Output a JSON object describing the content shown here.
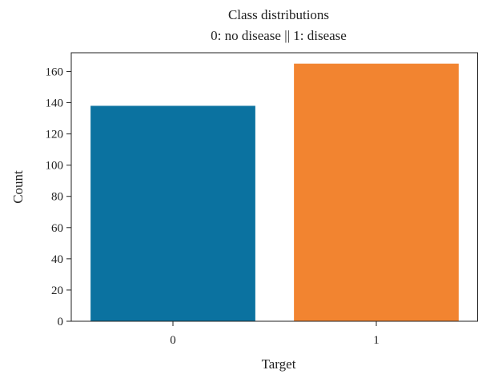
{
  "chart_data": {
    "type": "bar",
    "title": "Class distributions",
    "subtitle": "0: no disease || 1: disease",
    "xlabel": "Target",
    "ylabel": "Count",
    "categories": [
      "0",
      "1"
    ],
    "values": [
      138,
      165
    ],
    "colors": [
      "#0b72a0",
      "#f28430"
    ],
    "ylim": [
      0,
      172
    ],
    "yticks": [
      0,
      20,
      40,
      60,
      80,
      100,
      120,
      140,
      160
    ],
    "grid": false,
    "legend": "none"
  }
}
